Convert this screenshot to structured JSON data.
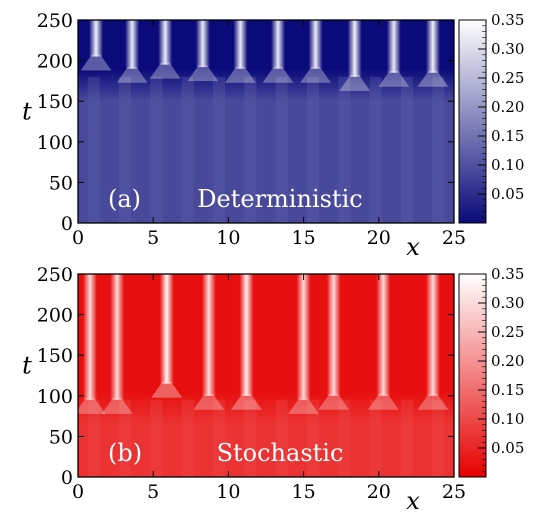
{
  "chart_data": [
    {
      "type": "heatmap",
      "panel_label": "(a)",
      "annotation": "Deterministic",
      "xlabel": "x",
      "ylabel": "t",
      "xlim": [
        0,
        25
      ],
      "ylim": [
        0,
        250
      ],
      "x_ticks": [
        "0",
        "5",
        "10",
        "15",
        "20",
        "25"
      ],
      "y_ticks": [
        "0",
        "50",
        "100",
        "150",
        "200",
        "250"
      ],
      "colorbar": {
        "range": [
          0,
          0.35
        ],
        "ticks": [
          "0.05",
          "0.10",
          "0.15",
          "0.20",
          "0.25",
          "0.30",
          "0.35"
        ],
        "low_color": "#0a0a7a",
        "high_color": "#ffffff"
      },
      "background_value": 0.09,
      "upper_region_value": 0.0,
      "stripes": [
        {
          "x": 1.2,
          "t_start": 205,
          "t_end": 250,
          "value": 0.33
        },
        {
          "x": 3.6,
          "t_start": 190,
          "t_end": 250,
          "value": 0.32
        },
        {
          "x": 5.8,
          "t_start": 195,
          "t_end": 250,
          "value": 0.32
        },
        {
          "x": 8.3,
          "t_start": 192,
          "t_end": 250,
          "value": 0.32
        },
        {
          "x": 10.8,
          "t_start": 190,
          "t_end": 250,
          "value": 0.32
        },
        {
          "x": 13.3,
          "t_start": 190,
          "t_end": 250,
          "value": 0.32
        },
        {
          "x": 15.8,
          "t_start": 190,
          "t_end": 250,
          "value": 0.32
        },
        {
          "x": 18.4,
          "t_start": 180,
          "t_end": 250,
          "value": 0.33
        },
        {
          "x": 21.0,
          "t_start": 185,
          "t_end": 250,
          "value": 0.32
        },
        {
          "x": 23.6,
          "t_start": 185,
          "t_end": 250,
          "value": 0.33
        }
      ]
    },
    {
      "type": "heatmap",
      "panel_label": "(b)",
      "annotation": "Stochastic",
      "xlabel": "x",
      "ylabel": "t",
      "xlim": [
        0,
        25
      ],
      "ylim": [
        0,
        250
      ],
      "x_ticks": [
        "0",
        "5",
        "10",
        "15",
        "20",
        "25"
      ],
      "y_ticks": [
        "0",
        "50",
        "100",
        "150",
        "200",
        "250"
      ],
      "colorbar": {
        "range": [
          0,
          0.35
        ],
        "ticks": [
          "0.05",
          "0.10",
          "0.15",
          "0.20",
          "0.25",
          "0.30",
          "0.35"
        ],
        "low_color": "#e60000",
        "high_color": "#ffffff"
      },
      "background_value": 0.07,
      "upper_region_value": 0.02,
      "stripes": [
        {
          "x": 0.8,
          "t_start": 95,
          "t_end": 250,
          "value": 0.3
        },
        {
          "x": 2.6,
          "t_start": 95,
          "t_end": 250,
          "value": 0.3
        },
        {
          "x": 5.9,
          "t_start": 115,
          "t_end": 250,
          "value": 0.34
        },
        {
          "x": 8.7,
          "t_start": 100,
          "t_end": 250,
          "value": 0.3
        },
        {
          "x": 11.2,
          "t_start": 100,
          "t_end": 250,
          "value": 0.33
        },
        {
          "x": 15.0,
          "t_start": 95,
          "t_end": 250,
          "value": 0.3
        },
        {
          "x": 17.0,
          "t_start": 100,
          "t_end": 250,
          "value": 0.3
        },
        {
          "x": 20.3,
          "t_start": 100,
          "t_end": 250,
          "value": 0.3
        },
        {
          "x": 23.6,
          "t_start": 100,
          "t_end": 250,
          "value": 0.3
        }
      ]
    }
  ]
}
